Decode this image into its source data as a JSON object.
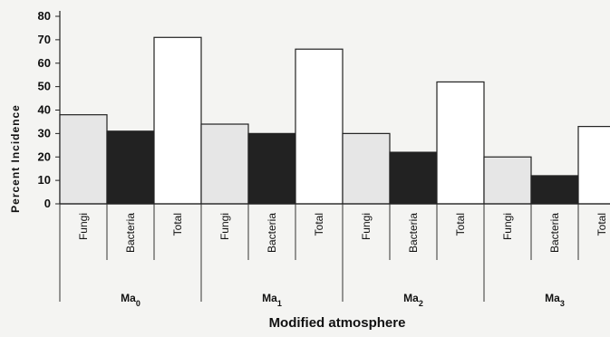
{
  "chart_data": {
    "type": "bar",
    "title": "",
    "xlabel": "Modified atmosphere",
    "ylabel": "Percent Incidence",
    "ylim": [
      0,
      80
    ],
    "yticks": [
      "0",
      "10",
      "20",
      "30",
      "40",
      "50",
      "60",
      "70",
      "80"
    ],
    "groups": [
      {
        "label": "Ma",
        "sub": "0",
        "bars": [
          {
            "category": "Fungi",
            "value": 38
          },
          {
            "category": "Bacteria",
            "value": 31
          },
          {
            "category": "Total",
            "value": 71
          }
        ]
      },
      {
        "label": "Ma",
        "sub": "1",
        "bars": [
          {
            "category": "Fungi",
            "value": 34
          },
          {
            "category": "Bacteria",
            "value": 30
          },
          {
            "category": "Total",
            "value": 66
          }
        ]
      },
      {
        "label": "Ma",
        "sub": "2",
        "bars": [
          {
            "category": "Fungi",
            "value": 30
          },
          {
            "category": "Bacteria",
            "value": 22
          },
          {
            "category": "Total",
            "value": 52
          }
        ]
      },
      {
        "label": "Ma",
        "sub": "3",
        "bars": [
          {
            "category": "Fungi",
            "value": 20
          },
          {
            "category": "Bacteria",
            "value": 12
          },
          {
            "category": "Total",
            "value": 33
          }
        ]
      }
    ],
    "colors": {
      "Fungi": "#e6e6e6",
      "Bacteria": "#222222",
      "Total": "#ffffff"
    },
    "grid": false,
    "legend": "none"
  }
}
